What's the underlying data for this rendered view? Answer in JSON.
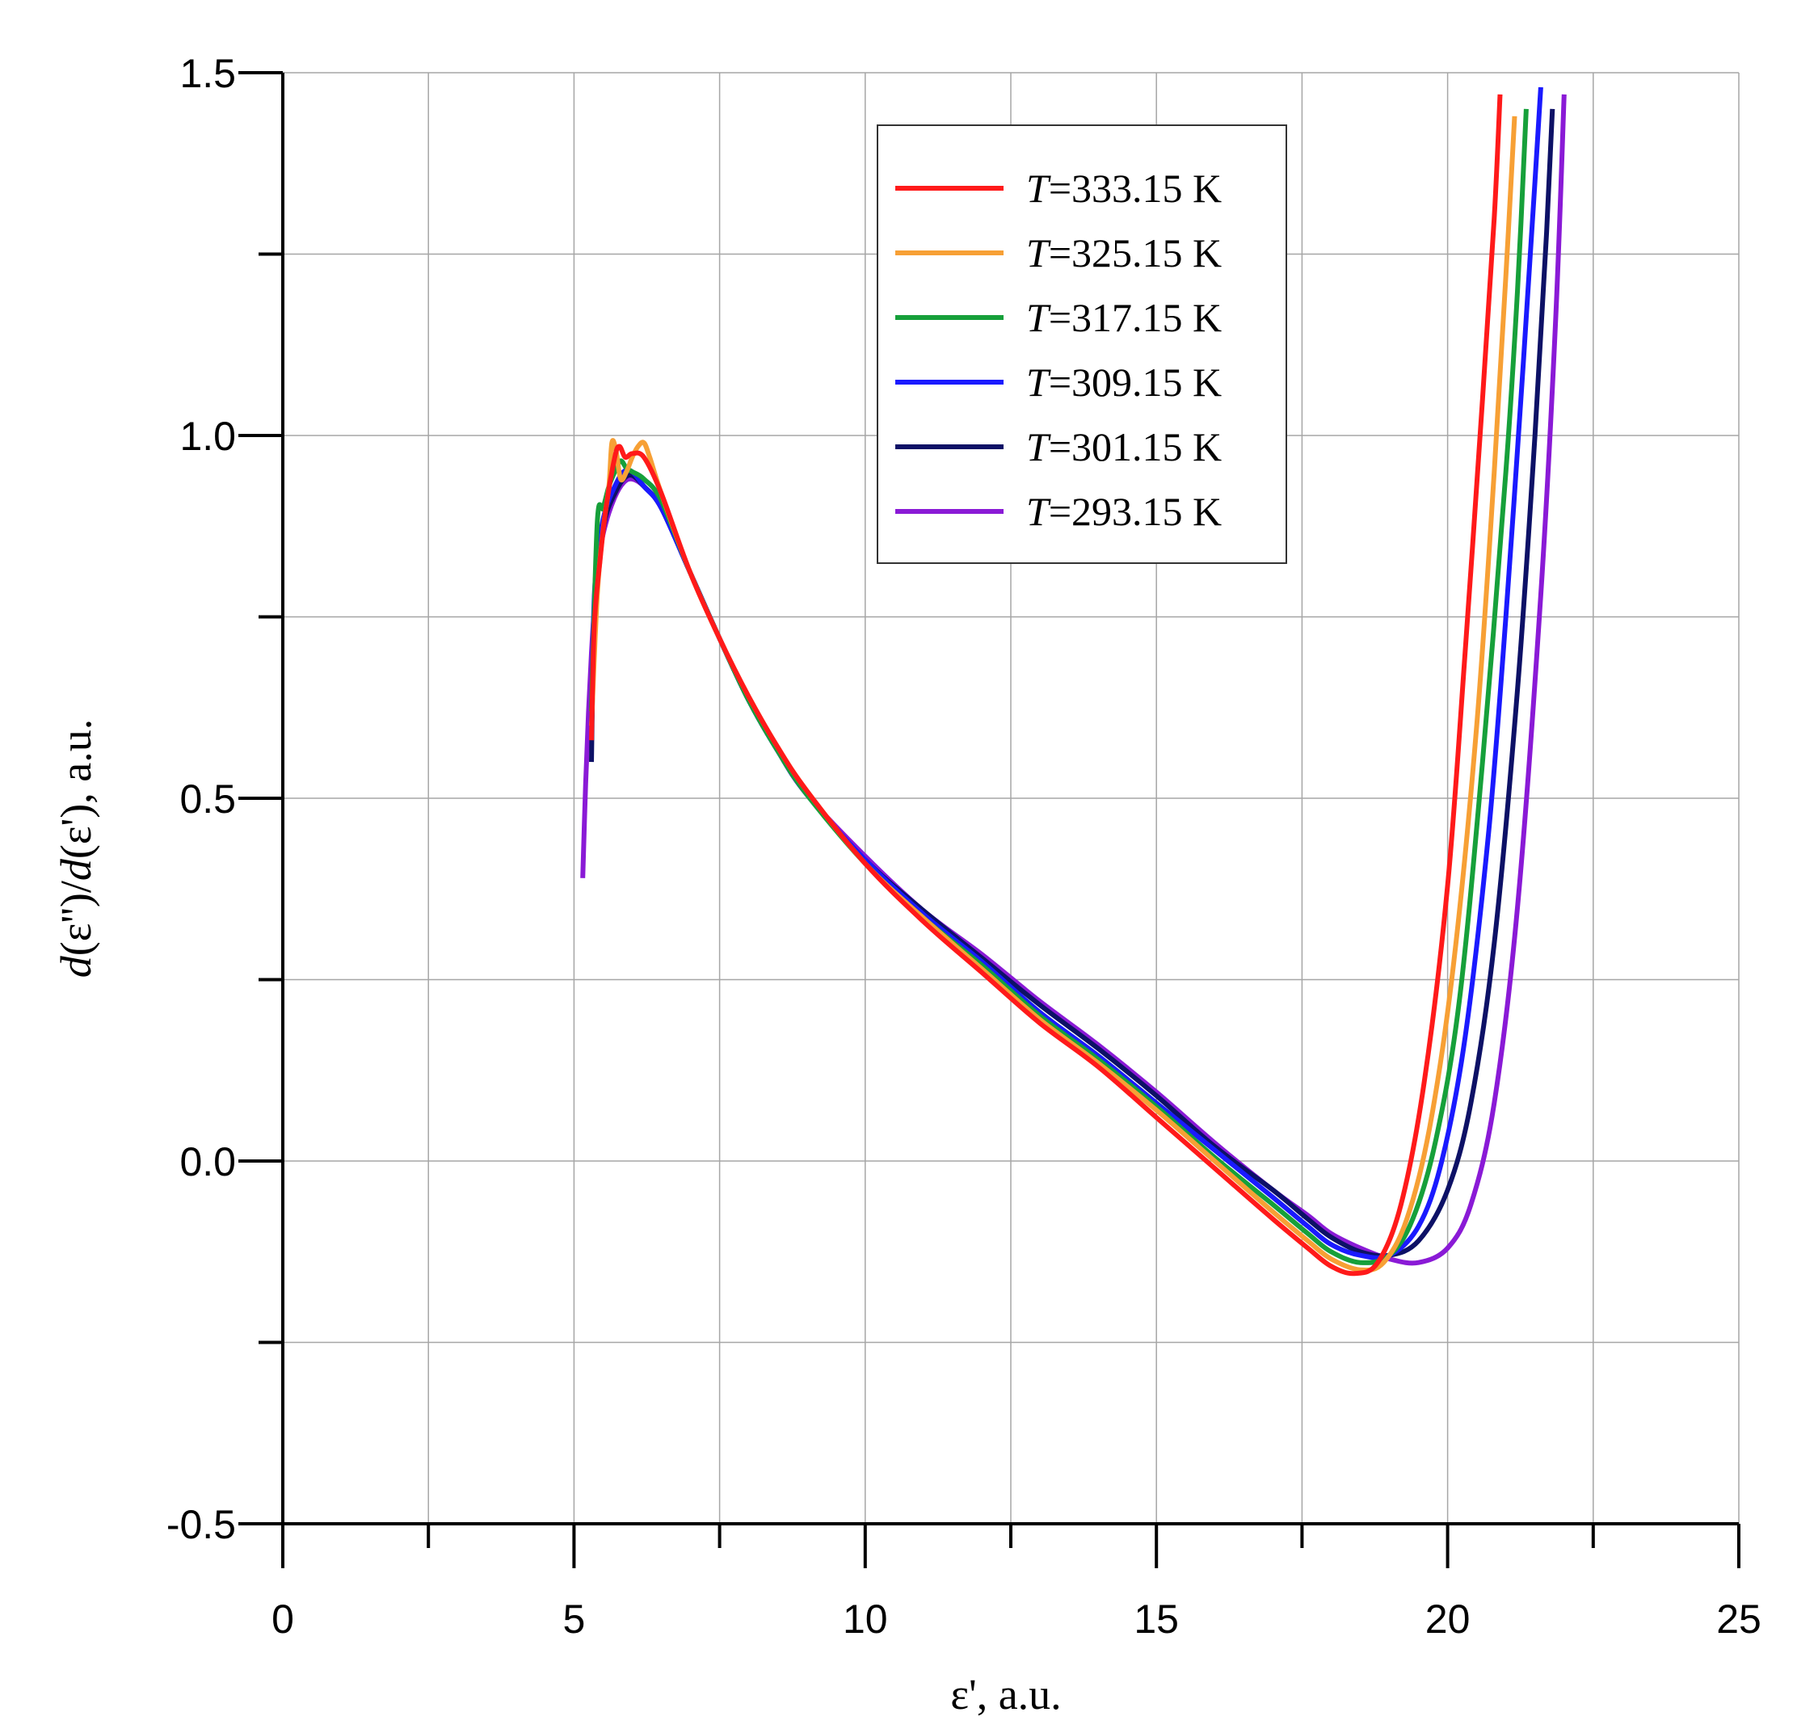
{
  "chart_data": {
    "type": "line",
    "title": "",
    "xlabel": "ε', a.u.",
    "ylabel": "d(ε'')/d(ε'), a.u.",
    "ylabel_parts": [
      "d",
      "(ε'')/",
      "d",
      "(ε'), a.u."
    ],
    "xlim": [
      0,
      25
    ],
    "ylim": [
      -0.5,
      1.5
    ],
    "x_ticks": [
      0,
      5,
      10,
      15,
      20,
      25
    ],
    "x_tick_labels": [
      "0",
      "5",
      "10",
      "15",
      "20",
      "25"
    ],
    "y_ticks": [
      -0.5,
      0.0,
      0.5,
      1.0,
      1.5
    ],
    "y_tick_labels": [
      "-0.5",
      "0.0",
      "0.5",
      "1.0",
      "1.5"
    ],
    "x_minor_ticks": [
      2.5,
      7.5,
      12.5,
      17.5,
      22.5
    ],
    "y_minor_ticks": [
      -0.25,
      0.25,
      0.75,
      1.25
    ],
    "grid": true,
    "legend_position": "top-center",
    "legend_prefix": "T",
    "series": [
      {
        "name": "T=333.15 K",
        "legend_value": "=333.15 K",
        "color": "#ff1a1a",
        "x": [
          5.3,
          5.35,
          5.45,
          5.55,
          5.7,
          5.78,
          5.88,
          6.0,
          6.2,
          6.5,
          7.0,
          7.5,
          8.0,
          8.5,
          9.0,
          10.0,
          11.0,
          12.0,
          13.0,
          14.0,
          15.0,
          16.0,
          17.0,
          17.6,
          18.0,
          18.4,
          18.8,
          19.2,
          19.6,
          20.0,
          20.3,
          20.6,
          20.8,
          20.9
        ],
        "y": [
          0.58,
          0.74,
          0.83,
          0.9,
          0.97,
          0.985,
          0.97,
          0.975,
          0.97,
          0.92,
          0.81,
          0.72,
          0.64,
          0.57,
          0.51,
          0.41,
          0.33,
          0.26,
          0.19,
          0.13,
          0.06,
          -0.01,
          -0.08,
          -0.12,
          -0.145,
          -0.155,
          -0.14,
          -0.06,
          0.11,
          0.38,
          0.7,
          1.05,
          1.3,
          1.47
        ]
      },
      {
        "name": "T=325.15 K",
        "legend_value": "=325.15 K",
        "color": "#f7a035",
        "x": [
          5.3,
          5.4,
          5.5,
          5.6,
          5.65,
          5.72,
          5.8,
          5.9,
          6.0,
          6.1,
          6.2,
          6.3,
          6.5,
          7.0,
          7.5,
          8.0,
          8.5,
          9.0,
          10.0,
          11.0,
          12.0,
          13.0,
          14.0,
          15.0,
          16.0,
          17.0,
          17.6,
          18.0,
          18.5,
          18.9,
          19.3,
          19.7,
          20.1,
          20.5,
          20.8,
          21.0,
          21.15
        ],
        "y": [
          0.6,
          0.78,
          0.87,
          0.93,
          0.99,
          0.98,
          0.94,
          0.95,
          0.97,
          0.985,
          0.99,
          0.97,
          0.92,
          0.81,
          0.72,
          0.64,
          0.57,
          0.51,
          0.41,
          0.335,
          0.265,
          0.195,
          0.135,
          0.07,
          0.0,
          -0.07,
          -0.11,
          -0.135,
          -0.15,
          -0.14,
          -0.08,
          0.05,
          0.27,
          0.6,
          0.95,
          1.22,
          1.44
        ]
      },
      {
        "name": "T=317.15 K",
        "legend_value": "=317.15 K",
        "color": "#16a03a",
        "x": [
          5.3,
          5.4,
          5.5,
          5.6,
          5.7,
          5.8,
          5.9,
          6.0,
          6.2,
          6.5,
          7.0,
          7.5,
          8.0,
          8.5,
          9.0,
          10.0,
          11.0,
          12.0,
          13.0,
          14.0,
          15.0,
          16.0,
          17.0,
          17.6,
          18.0,
          18.5,
          19.0,
          19.4,
          19.8,
          20.2,
          20.6,
          21.0,
          21.2,
          21.35
        ],
        "y": [
          0.62,
          0.88,
          0.9,
          0.93,
          0.95,
          0.965,
          0.955,
          0.95,
          0.94,
          0.91,
          0.81,
          0.72,
          0.635,
          0.565,
          0.505,
          0.41,
          0.335,
          0.27,
          0.2,
          0.14,
          0.075,
          0.005,
          -0.06,
          -0.1,
          -0.125,
          -0.14,
          -0.13,
          -0.08,
          0.03,
          0.22,
          0.55,
          0.95,
          1.2,
          1.45
        ]
      },
      {
        "name": "T=309.15 K",
        "legend_value": "=309.15 K",
        "color": "#1a1aff",
        "x": [
          5.3,
          5.35,
          5.45,
          5.55,
          5.7,
          5.85,
          6.0,
          6.2,
          6.5,
          7.0,
          7.5,
          8.0,
          8.5,
          9.0,
          10.0,
          11.0,
          12.0,
          13.0,
          14.0,
          15.0,
          16.0,
          17.0,
          17.6,
          18.0,
          18.5,
          19.0,
          19.5,
          19.9,
          20.3,
          20.7,
          21.0,
          21.3,
          21.5,
          21.6
        ],
        "y": [
          0.6,
          0.78,
          0.86,
          0.9,
          0.93,
          0.95,
          0.95,
          0.93,
          0.9,
          0.81,
          0.72,
          0.635,
          0.565,
          0.505,
          0.415,
          0.34,
          0.275,
          0.205,
          0.145,
          0.08,
          0.015,
          -0.05,
          -0.09,
          -0.115,
          -0.13,
          -0.13,
          -0.09,
          0.0,
          0.17,
          0.45,
          0.75,
          1.1,
          1.35,
          1.48
        ]
      },
      {
        "name": "T=301.15 K",
        "legend_value": "=301.15 K",
        "color": "#0d1166",
        "x": [
          5.3,
          5.35,
          5.45,
          5.55,
          5.7,
          5.85,
          6.0,
          6.2,
          6.5,
          7.0,
          7.5,
          8.0,
          8.5,
          9.0,
          10.0,
          11.0,
          12.0,
          13.0,
          14.0,
          15.0,
          16.0,
          17.0,
          17.6,
          18.0,
          18.5,
          19.0,
          19.5,
          20.0,
          20.4,
          20.8,
          21.2,
          21.5,
          21.7,
          21.8
        ],
        "y": [
          0.55,
          0.76,
          0.84,
          0.89,
          0.92,
          0.94,
          0.945,
          0.93,
          0.9,
          0.81,
          0.72,
          0.635,
          0.565,
          0.505,
          0.415,
          0.345,
          0.28,
          0.215,
          0.155,
          0.09,
          0.02,
          -0.04,
          -0.08,
          -0.105,
          -0.125,
          -0.13,
          -0.11,
          -0.04,
          0.08,
          0.3,
          0.65,
          1.0,
          1.28,
          1.45
        ]
      },
      {
        "name": "T=293.15 K",
        "legend_value": "=293.15 K",
        "color": "#8a1ad6",
        "x": [
          5.15,
          5.2,
          5.25,
          5.3,
          5.35,
          5.45,
          5.55,
          5.7,
          5.85,
          6.0,
          6.2,
          6.5,
          7.0,
          7.5,
          8.0,
          8.5,
          9.0,
          10.0,
          11.0,
          12.0,
          13.0,
          14.0,
          15.0,
          16.0,
          17.0,
          17.6,
          18.0,
          18.5,
          19.0,
          19.5,
          20.0,
          20.4,
          20.8,
          21.2,
          21.6,
          21.85,
          22.0
        ],
        "y": [
          0.39,
          0.52,
          0.62,
          0.7,
          0.76,
          0.84,
          0.88,
          0.915,
          0.935,
          0.94,
          0.93,
          0.9,
          0.81,
          0.72,
          0.635,
          0.565,
          0.505,
          0.42,
          0.345,
          0.285,
          0.22,
          0.16,
          0.095,
          0.025,
          -0.04,
          -0.075,
          -0.1,
          -0.12,
          -0.135,
          -0.14,
          -0.12,
          -0.06,
          0.08,
          0.35,
          0.78,
          1.15,
          1.47
        ]
      }
    ]
  }
}
